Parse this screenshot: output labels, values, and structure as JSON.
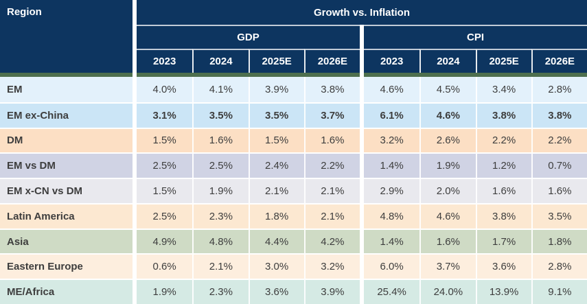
{
  "chart_data": {
    "type": "table",
    "title": "Growth vs. Inflation",
    "row_header": "Region",
    "column_groups": [
      "GDP",
      "CPI"
    ],
    "years": [
      "2023",
      "2024",
      "2025E",
      "2026E"
    ],
    "value_unit": "%",
    "rows": [
      {
        "region": "EM",
        "bold": false,
        "gdp": [
          4.0,
          4.1,
          3.9,
          3.8
        ],
        "cpi": [
          4.6,
          4.5,
          3.4,
          2.8
        ]
      },
      {
        "region": "EM ex-China",
        "bold": true,
        "gdp": [
          3.1,
          3.5,
          3.5,
          3.7
        ],
        "cpi": [
          6.1,
          4.6,
          3.8,
          3.8
        ]
      },
      {
        "region": "DM",
        "bold": false,
        "gdp": [
          1.5,
          1.6,
          1.5,
          1.6
        ],
        "cpi": [
          3.2,
          2.6,
          2.2,
          2.2
        ]
      },
      {
        "region": "EM vs DM",
        "bold": false,
        "gdp": [
          2.5,
          2.5,
          2.4,
          2.2
        ],
        "cpi": [
          1.4,
          1.9,
          1.2,
          0.7
        ]
      },
      {
        "region": "EM x-CN vs DM",
        "bold": false,
        "gdp": [
          1.5,
          1.9,
          2.1,
          2.1
        ],
        "cpi": [
          2.9,
          2.0,
          1.6,
          1.6
        ]
      },
      {
        "region": "Latin America",
        "bold": false,
        "gdp": [
          2.5,
          2.3,
          1.8,
          2.1
        ],
        "cpi": [
          4.8,
          4.6,
          3.8,
          3.5
        ]
      },
      {
        "region": "Asia",
        "bold": false,
        "gdp": [
          4.9,
          4.8,
          4.4,
          4.2
        ],
        "cpi": [
          1.4,
          1.6,
          1.7,
          1.8
        ]
      },
      {
        "region": "Eastern Europe",
        "bold": false,
        "gdp": [
          0.6,
          2.1,
          3.0,
          3.2
        ],
        "cpi": [
          6.0,
          3.7,
          3.6,
          2.8
        ]
      },
      {
        "region": "ME/Africa",
        "bold": false,
        "gdp": [
          1.9,
          2.3,
          3.6,
          3.9
        ],
        "cpi": [
          25.4,
          24.0,
          13.9,
          9.1
        ]
      }
    ]
  },
  "colors": {
    "header_bg": "#0d3560",
    "header_text": "#ffffff",
    "accent_line": "#4d6f4e",
    "body_text": "#3d3d3d",
    "row_colors": [
      "#e3f1fb",
      "#cbe5f6",
      "#fcdfc4",
      "#d0d3e4",
      "#e9e9ee",
      "#fce8d1",
      "#cfdbc5",
      "#fdeede",
      "#d5eae4"
    ]
  }
}
